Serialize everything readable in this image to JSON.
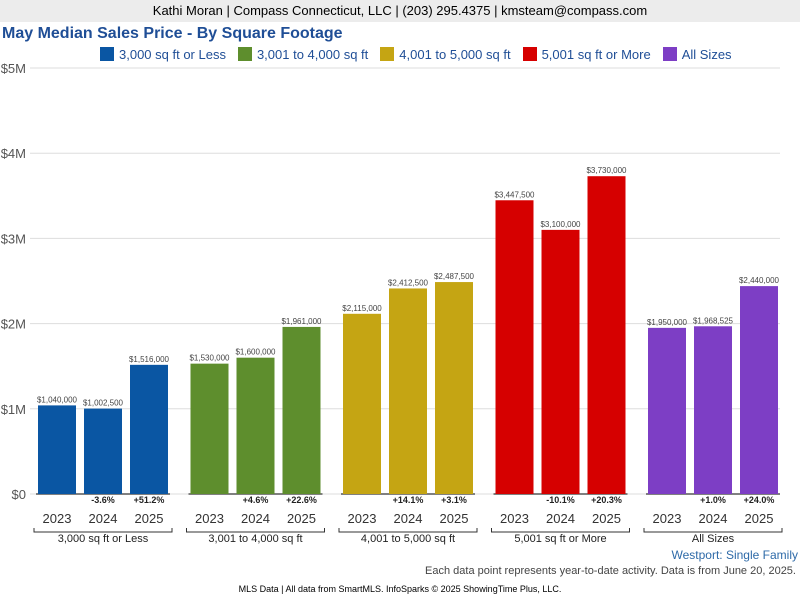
{
  "header": {
    "contact": "Kathi Moran | Compass Connecticut, LLC | (203) 295.4375 | kmsteam@compass.com"
  },
  "chart_data": {
    "type": "bar",
    "title": "May Median Sales Price - By Square Footage",
    "ylim": [
      0,
      5000000
    ],
    "yticks": [
      "$0",
      "$1M",
      "$2M",
      "$3M",
      "$4M",
      "$5M"
    ],
    "grid": true,
    "legend_position": "top",
    "years": [
      "2023",
      "2024",
      "2025"
    ],
    "groups": [
      {
        "name": "3,000 sq ft or Less",
        "color": "#0a56a3",
        "values": [
          1040000,
          1002500,
          1516000
        ],
        "value_labels": [
          "$1,040,000",
          "$1,002,500",
          "$1,516,000"
        ],
        "changes": [
          "",
          "-3.6%",
          "+51.2%"
        ]
      },
      {
        "name": "3,001 to 4,000 sq ft",
        "color": "#5e8e2d",
        "values": [
          1530000,
          1600000,
          1961000
        ],
        "value_labels": [
          "$1,530,000",
          "$1,600,000",
          "$1,961,000"
        ],
        "changes": [
          "",
          "+4.6%",
          "+22.6%"
        ]
      },
      {
        "name": "4,001 to 5,000 sq ft",
        "color": "#c5a513",
        "values": [
          2115000,
          2412500,
          2487500
        ],
        "value_labels": [
          "$2,115,000",
          "$2,412,500",
          "$2,487,500"
        ],
        "changes": [
          "",
          "+14.1%",
          "+3.1%"
        ]
      },
      {
        "name": "5,001 sq ft or More",
        "color": "#d60000",
        "values": [
          3447500,
          3100000,
          3730000
        ],
        "value_labels": [
          "$3,447,500",
          "$3,100,000",
          "$3,730,000"
        ],
        "changes": [
          "",
          "-10.1%",
          "+20.3%"
        ]
      },
      {
        "name": "All Sizes",
        "color": "#7d3ec5",
        "values": [
          1950000,
          1968525,
          2440000
        ],
        "value_labels": [
          "$1,950,000",
          "$1,968,525",
          "$2,440,000"
        ],
        "changes": [
          "",
          "+1.0%",
          "+24.0%"
        ]
      }
    ]
  },
  "notes": {
    "region": "Westport: Single Family",
    "data_note": "Each data point represents year-to-date activity. Data is from June 20, 2025."
  },
  "footer": "MLS Data | All data from SmartMLS. InfoSparks © 2025 ShowingTime Plus, LLC."
}
